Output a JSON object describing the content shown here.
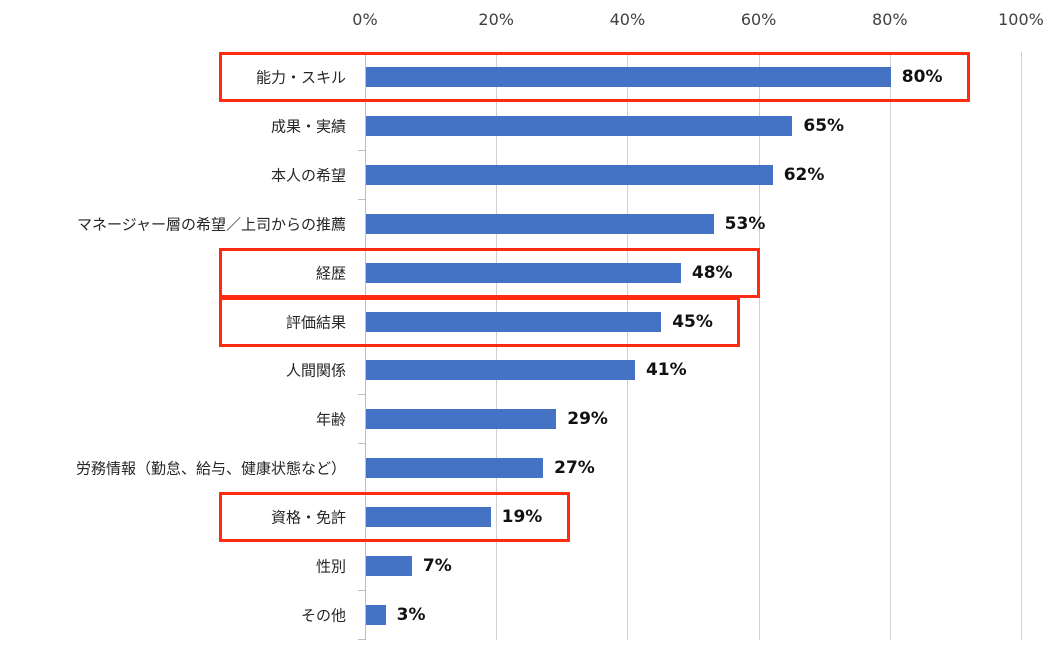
{
  "chart_data": {
    "type": "bar",
    "orientation": "horizontal",
    "title": "",
    "xlabel": "",
    "ylabel": "",
    "xlim": [
      0,
      100
    ],
    "x_ticks": [
      "0%",
      "20%",
      "40%",
      "60%",
      "80%",
      "100%"
    ],
    "grid": true,
    "legend": null,
    "categories": [
      "能力・スキル",
      "成果・実績",
      "本人の希望",
      "マネージャー層の希望／上司からの推薦",
      "経歴",
      "評価結果",
      "人間関係",
      "年齢",
      "労務情報（勤怠、給与、健康状態など）",
      "資格・免許",
      "性別",
      "その他"
    ],
    "values": [
      80,
      65,
      62,
      53,
      48,
      45,
      41,
      29,
      27,
      19,
      7,
      3
    ],
    "value_labels": [
      "80%",
      "65%",
      "62%",
      "53%",
      "48%",
      "45%",
      "41%",
      "29%",
      "27%",
      "19%",
      "7%",
      "3%"
    ],
    "highlighted_categories": [
      "能力・スキル",
      "経歴",
      "評価結果",
      "資格・免許"
    ],
    "colors": {
      "bar": "#4472c4",
      "highlight": "#ff2a12",
      "grid": "#d0d0d0"
    }
  }
}
